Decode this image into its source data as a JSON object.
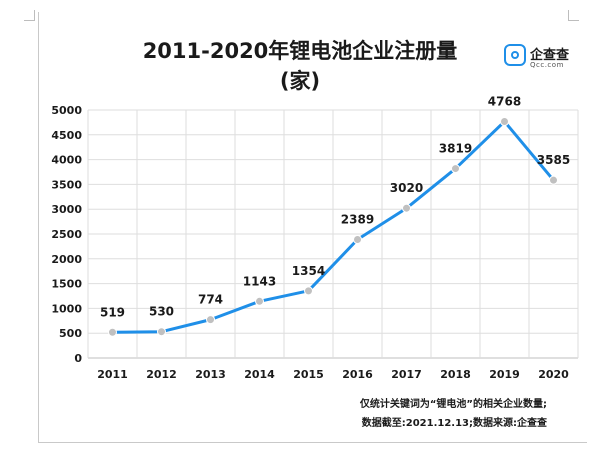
{
  "chart_data": {
    "type": "line",
    "title_line1": "2011-2020年锂电池企业注册量",
    "title_line2": "(家)",
    "categories": [
      "2011",
      "2012",
      "2013",
      "2014",
      "2015",
      "2016",
      "2017",
      "2018",
      "2019",
      "2020"
    ],
    "values": [
      519,
      530,
      774,
      1143,
      1354,
      2389,
      3020,
      3819,
      4768,
      3585
    ],
    "data_labels": [
      "519",
      "530",
      "774",
      "1143",
      "1354",
      "2389",
      "3020",
      "3819",
      "4768",
      "3585"
    ],
    "ylim": [
      0,
      5000
    ],
    "yticks": [
      "0",
      "500",
      "1000",
      "1500",
      "2000",
      "2500",
      "3000",
      "3500",
      "4000",
      "4500",
      "5000"
    ],
    "grid": true,
    "line_color": "#1f8fe8",
    "marker_color": "#c0c0c0"
  },
  "logo": {
    "name": "企查查",
    "sub": "Qcc.com"
  },
  "footnotes": {
    "line1": "仅统计关键词为“锂电池”的相关企业数量;",
    "line2": "数据截至:2021.12.13;数据来源:企查查"
  }
}
